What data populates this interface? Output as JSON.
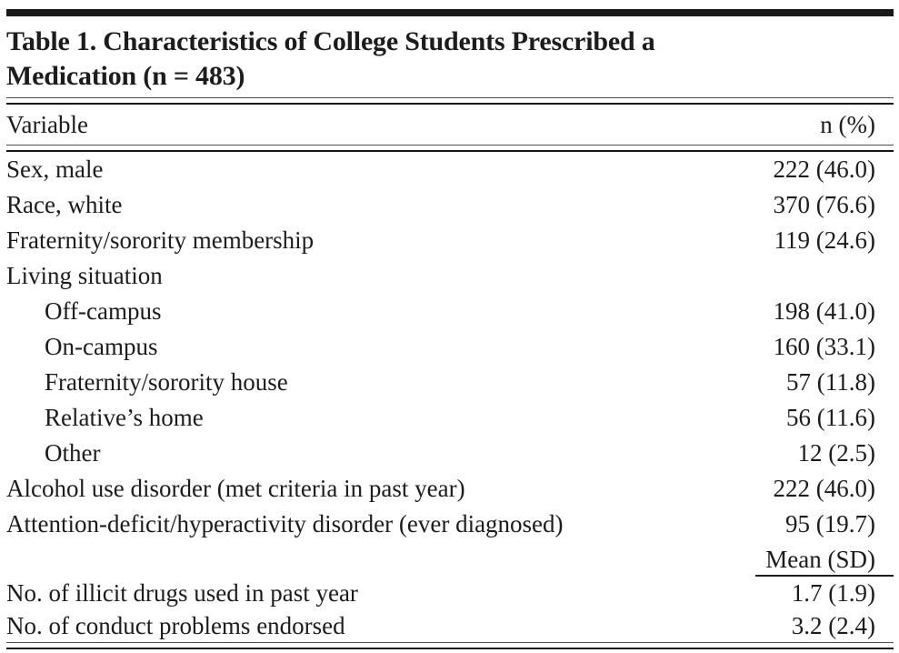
{
  "table": {
    "title_line1": "Table 1. Characteristics of College Students Prescribed a",
    "title_line2": "Medication (n = 483)",
    "columns": {
      "variable": "Variable",
      "n_pct": "n (%)"
    },
    "rows": [
      {
        "label": "Sex, male",
        "value": "222 (46.0)",
        "indent": false
      },
      {
        "label": "Race, white",
        "value": "370 (76.6)",
        "indent": false
      },
      {
        "label": "Fraternity/sorority membership",
        "value": "119 (24.6)",
        "indent": false
      },
      {
        "label": "Living situation",
        "value": "",
        "indent": false
      },
      {
        "label": "Off-campus",
        "value": "198 (41.0)",
        "indent": true
      },
      {
        "label": "On-campus",
        "value": "160 (33.1)",
        "indent": true
      },
      {
        "label": "Fraternity/sorority house",
        "value": "57 (11.8)",
        "indent": true
      },
      {
        "label": "Relative’s home",
        "value": "56 (11.6)",
        "indent": true
      },
      {
        "label": "Other",
        "value": "12 (2.5)",
        "indent": true
      },
      {
        "label": "Alcohol use disorder (met criteria in past year)",
        "value": "222 (46.0)",
        "indent": false
      },
      {
        "label": "Attention-deficit/hyperactivity disorder (ever diagnosed)",
        "value": "95 (19.7)",
        "indent": false
      }
    ],
    "mean_header": "Mean (SD)",
    "mean_rows": [
      {
        "label": "No. of illicit drugs used in past year",
        "value": "1.7 (1.9)"
      },
      {
        "label": "No. of conduct problems endorsed",
        "value": "3.2 (2.4)"
      }
    ]
  },
  "colors": {
    "text": "#1c1c1c",
    "rule": "#161616",
    "background": "#ffffff"
  }
}
